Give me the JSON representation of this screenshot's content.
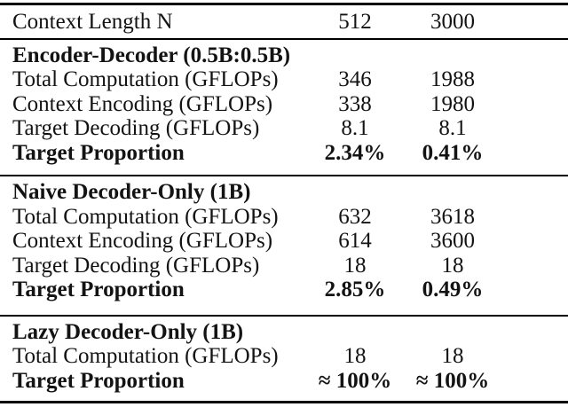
{
  "table": {
    "header": {
      "label": "Context Length N",
      "col1": "512",
      "col2": "3000"
    },
    "sections": [
      {
        "title": "Encoder-Decoder (0.5B:0.5B)",
        "rows": [
          {
            "label": "Total Computation (GFLOPs)",
            "col1": "346",
            "col2": "1988"
          },
          {
            "label": "Context Encoding (GFLOPs)",
            "col1": "338",
            "col2": "1980"
          },
          {
            "label": "Target Decoding (GFLOPs)",
            "col1": "8.1",
            "col2": "8.1"
          },
          {
            "label": "Target Proportion",
            "col1": "2.34%",
            "col2": "0.41%"
          }
        ]
      },
      {
        "title": "Naive Decoder-Only (1B)",
        "rows": [
          {
            "label": "Total Computation (GFLOPs)",
            "col1": "632",
            "col2": "3618"
          },
          {
            "label": "Context Encoding (GFLOPs)",
            "col1": "614",
            "col2": "3600"
          },
          {
            "label": "Target Decoding (GFLOPs)",
            "col1": "18",
            "col2": "18"
          },
          {
            "label": "Target Proportion",
            "col1": "2.85%",
            "col2": "0.49%"
          }
        ]
      },
      {
        "title": "Lazy Decoder-Only (1B)",
        "rows": [
          {
            "label": "Total Computation (GFLOPs)",
            "col1": "18",
            "col2": "18"
          },
          {
            "label": "Target Proportion",
            "col1": "≈ 100%",
            "col2": "≈ 100%"
          }
        ]
      }
    ]
  }
}
